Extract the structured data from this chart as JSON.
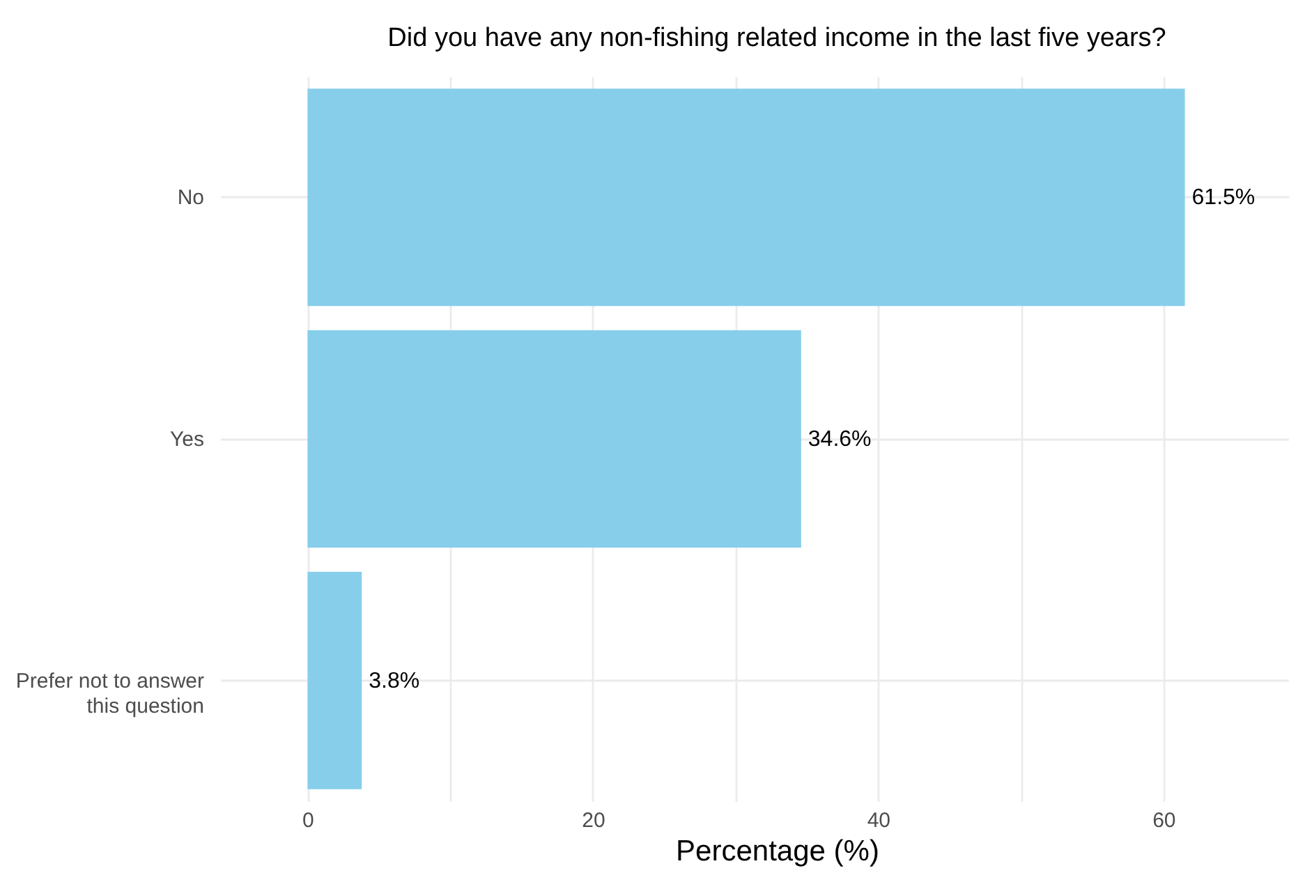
{
  "chart_data": {
    "type": "bar",
    "orientation": "horizontal",
    "title": "Did you have any non-fishing related income in the last five years?",
    "xlabel": "Percentage (%)",
    "categories": [
      "No",
      "Yes",
      "Prefer not to answer this question"
    ],
    "values": [
      61.5,
      34.6,
      3.8
    ],
    "value_labels": [
      "61.5%",
      "34.6%",
      "3.8%"
    ],
    "color": "#87ceeb",
    "xlim": [
      -3,
      68.8
    ],
    "xticks": [
      0,
      {
        "value": 10,
        "label": null
      },
      20,
      {
        "value": 30,
        "label": null
      },
      40,
      {
        "value": 50,
        "label": null
      },
      60
    ],
    "grid": true
  }
}
